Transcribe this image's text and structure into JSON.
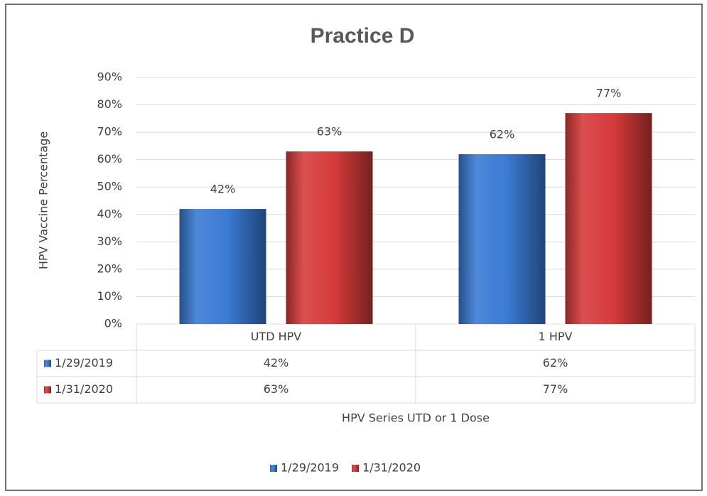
{
  "chart_data": {
    "type": "bar",
    "title": "Practice D",
    "y_label": "HPV Vaccine Percentage",
    "x_label": "HPV Series UTD or 1 Dose",
    "categories": [
      "UTD HPV",
      "1 HPV"
    ],
    "series": [
      {
        "name": "1/29/2019",
        "color": "#3a7bd5",
        "values": [
          42,
          62
        ],
        "value_labels": [
          "42%",
          "62%"
        ]
      },
      {
        "name": "1/31/2020",
        "color": "#d63b3b",
        "values": [
          63,
          77
        ],
        "value_labels": [
          "63%",
          "77%"
        ]
      }
    ],
    "ylim": [
      0,
      90
    ],
    "yticks": [
      {
        "value": 0,
        "label": "0%"
      },
      {
        "value": 10,
        "label": "10%"
      },
      {
        "value": 20,
        "label": "20%"
      },
      {
        "value": 30,
        "label": "30%"
      },
      {
        "value": 40,
        "label": "40%"
      },
      {
        "value": 50,
        "label": "50%"
      },
      {
        "value": 60,
        "label": "60%"
      },
      {
        "value": 70,
        "label": "70%"
      },
      {
        "value": 80,
        "label": "80%"
      },
      {
        "value": 90,
        "label": "90%"
      }
    ],
    "grid": true,
    "legend": "bottom",
    "data_table": true
  }
}
